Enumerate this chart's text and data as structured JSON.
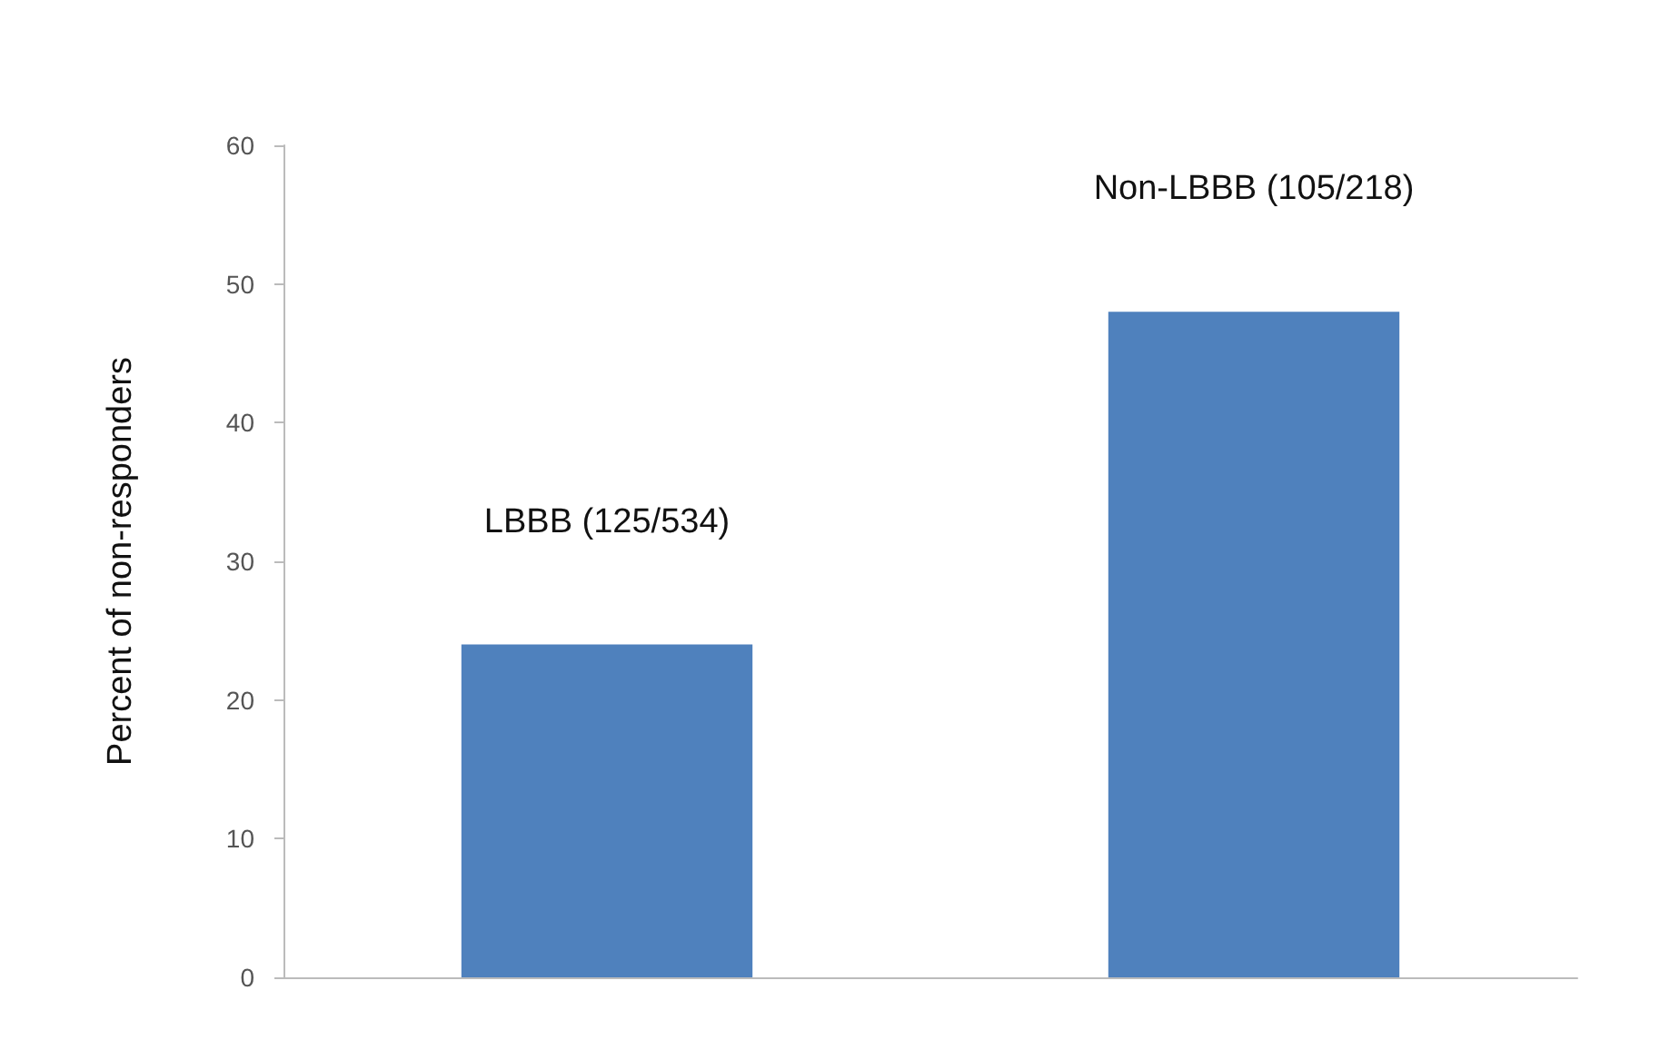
{
  "chart_data": {
    "type": "bar",
    "ylabel": "Percent of non-responders",
    "categories": [
      null,
      null
    ],
    "values": [
      24,
      48
    ],
    "value_labels": [
      "LBBB (125/534)",
      "Non-LBBB (105/218)"
    ],
    "color": "#4f81bd",
    "ylim": [
      0,
      60
    ],
    "yticks": [
      0,
      10,
      20,
      30,
      40,
      50,
      60
    ],
    "grid": false
  }
}
